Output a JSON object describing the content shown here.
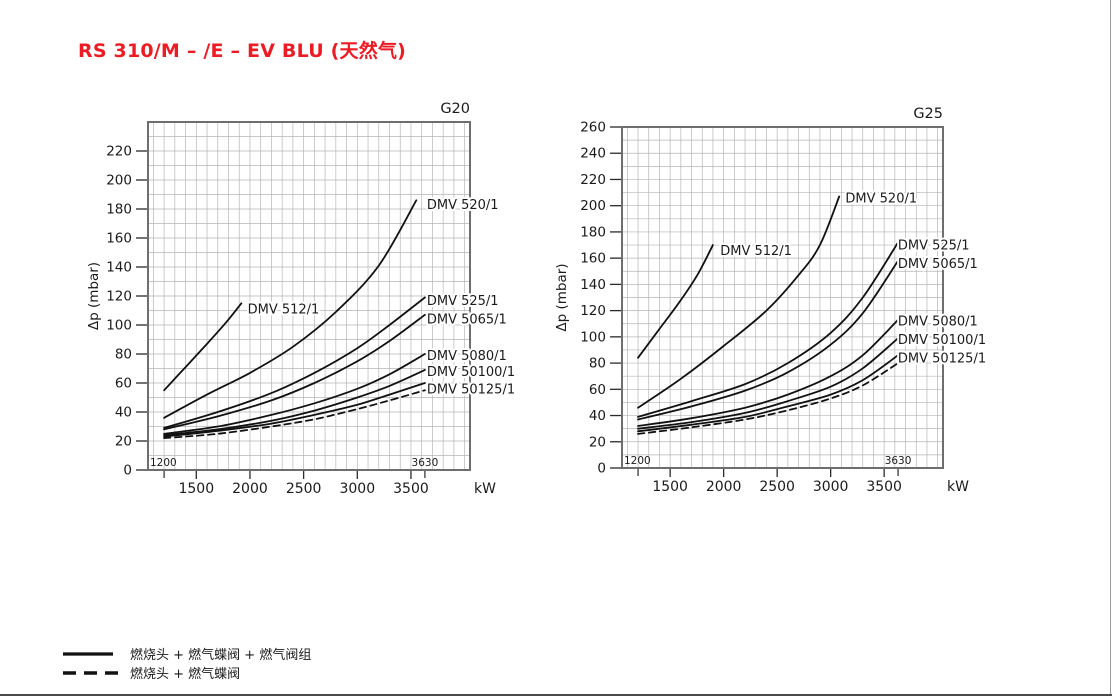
{
  "page": {
    "title": "RS 310/M – /E – EV BLU (天然气)",
    "title_color": "#ed1c24"
  },
  "colors": {
    "curve": "#111111",
    "grid": "#b5b5b5",
    "frame": "#6e6e6e",
    "tick": "#2a2a2a",
    "text": "#1b1b1b"
  },
  "legend": {
    "items": [
      {
        "style": "solid",
        "label": "燃烧头 + 燃气蝶阀 + 燃气阀组"
      },
      {
        "style": "dashed",
        "label": "燃烧头 + 燃气蝶阀"
      }
    ]
  },
  "chart_data": [
    {
      "type": "line",
      "title": "G20",
      "xlabel": "kW",
      "ylabel": "Δp (mbar)",
      "xlim": [
        1050,
        4050
      ],
      "ylim": [
        0,
        240
      ],
      "x_ticks": [
        1500,
        2000,
        2500,
        3000,
        3500
      ],
      "y_ticks": [
        0,
        20,
        40,
        60,
        80,
        100,
        120,
        140,
        160,
        180,
        200,
        220
      ],
      "range_marks": [
        1200,
        3630
      ],
      "grid": {
        "x_step": 100,
        "y_step": 10,
        "on": true
      },
      "series": [
        {
          "name": "DMV 512/1",
          "style": "solid",
          "label_at": [
            1950,
            111
          ],
          "points": [
            [
              1200,
              55
            ],
            [
              1400,
              71
            ],
            [
              1600,
              87
            ],
            [
              1780,
              102
            ],
            [
              1920,
              115
            ]
          ]
        },
        {
          "name": "DMV 520/1",
          "style": "solid",
          "label_at": [
            3620,
            183
          ],
          "points": [
            [
              1200,
              36
            ],
            [
              1600,
              52
            ],
            [
              2000,
              67
            ],
            [
              2400,
              85
            ],
            [
              2800,
              109
            ],
            [
              3200,
              141
            ],
            [
              3550,
              186
            ]
          ]
        },
        {
          "name": "DMV 525/1",
          "style": "solid",
          "label_at": [
            3620,
            117
          ],
          "points": [
            [
              1200,
              29
            ],
            [
              1700,
              40
            ],
            [
              2200,
              53
            ],
            [
              2600,
              67
            ],
            [
              3000,
              84
            ],
            [
              3300,
              100
            ],
            [
              3630,
              119
            ]
          ]
        },
        {
          "name": "DMV 5065/1",
          "style": "solid",
          "label_at": [
            3620,
            104
          ],
          "points": [
            [
              1200,
              28
            ],
            [
              1700,
              37
            ],
            [
              2200,
              48
            ],
            [
              2600,
              60
            ],
            [
              3000,
              75
            ],
            [
              3300,
              89
            ],
            [
              3630,
              107
            ]
          ]
        },
        {
          "name": "DMV 5080/1",
          "style": "solid",
          "label_at": [
            3620,
            79
          ],
          "points": [
            [
              1200,
              25
            ],
            [
              1700,
              30
            ],
            [
              2200,
              38
            ],
            [
              2600,
              46
            ],
            [
              3000,
              56
            ],
            [
              3300,
              66
            ],
            [
              3630,
              80
            ]
          ]
        },
        {
          "name": "DMV 50100/1",
          "style": "solid",
          "label_at": [
            3620,
            68
          ],
          "points": [
            [
              1200,
              24
            ],
            [
              1700,
              28
            ],
            [
              2200,
              34
            ],
            [
              2600,
              41
            ],
            [
              3000,
              50
            ],
            [
              3300,
              58
            ],
            [
              3630,
              69
            ]
          ]
        },
        {
          "name": "DMV 50125/1",
          "style": "solid",
          "label_at": [
            3620,
            56
          ],
          "points": [
            [
              1200,
              23
            ],
            [
              1700,
              27
            ],
            [
              2200,
              32
            ],
            [
              2600,
              38
            ],
            [
              3000,
              45
            ],
            [
              3300,
              52
            ],
            [
              3630,
              60
            ]
          ]
        },
        {
          "name": "",
          "style": "dashed",
          "label_at": null,
          "points": [
            [
              1200,
              22
            ],
            [
              1700,
              25
            ],
            [
              2200,
              30
            ],
            [
              2600,
              35
            ],
            [
              3000,
              42
            ],
            [
              3300,
              48
            ],
            [
              3630,
              55
            ]
          ]
        }
      ]
    },
    {
      "type": "line",
      "title": "G25",
      "xlabel": "kW",
      "ylabel": "Δp (mbar)",
      "xlim": [
        1050,
        4050
      ],
      "ylim": [
        0,
        260
      ],
      "x_ticks": [
        1500,
        2000,
        2500,
        3000,
        3500
      ],
      "y_ticks": [
        0,
        20,
        40,
        60,
        80,
        100,
        120,
        140,
        160,
        180,
        200,
        220,
        240,
        260
      ],
      "range_marks": [
        1200,
        3630
      ],
      "grid": {
        "x_step": 100,
        "y_step": 10,
        "on": true
      },
      "series": [
        {
          "name": "DMV 512/1",
          "style": "solid",
          "label_at": [
            1940,
            166
          ],
          "points": [
            [
              1200,
              84
            ],
            [
              1400,
              106
            ],
            [
              1600,
              128
            ],
            [
              1760,
              148
            ],
            [
              1900,
              170
            ]
          ]
        },
        {
          "name": "DMV 520/1",
          "style": "solid",
          "label_at": [
            3110,
            206
          ],
          "points": [
            [
              1200,
              46
            ],
            [
              1600,
              68
            ],
            [
              2000,
              93
            ],
            [
              2400,
              120
            ],
            [
              2700,
              147
            ],
            [
              2900,
              170
            ],
            [
              3080,
              207
            ]
          ]
        },
        {
          "name": "DMV 525/1",
          "style": "solid",
          "label_at": [
            3600,
            170
          ],
          "points": [
            [
              1200,
              39
            ],
            [
              1700,
              51
            ],
            [
              2200,
              64
            ],
            [
              2600,
              80
            ],
            [
              3000,
              103
            ],
            [
              3300,
              130
            ],
            [
              3630,
              172
            ]
          ]
        },
        {
          "name": "DMV 5065/1",
          "style": "solid",
          "label_at": [
            3600,
            156
          ],
          "points": [
            [
              1200,
              37
            ],
            [
              1700,
              47
            ],
            [
              2200,
              59
            ],
            [
              2600,
              73
            ],
            [
              3000,
              94
            ],
            [
              3300,
              118
            ],
            [
              3630,
              158
            ]
          ]
        },
        {
          "name": "DMV 5080/1",
          "style": "solid",
          "label_at": [
            3600,
            112
          ],
          "points": [
            [
              1200,
              32
            ],
            [
              1700,
              38
            ],
            [
              2200,
              46
            ],
            [
              2600,
              56
            ],
            [
              3000,
              70
            ],
            [
              3300,
              86
            ],
            [
              3630,
              113
            ]
          ]
        },
        {
          "name": "DMV 50100/1",
          "style": "solid",
          "label_at": [
            3600,
            98
          ],
          "points": [
            [
              1200,
              30
            ],
            [
              1700,
              35
            ],
            [
              2200,
              42
            ],
            [
              2600,
              51
            ],
            [
              3000,
              62
            ],
            [
              3300,
              76
            ],
            [
              3630,
              99
            ]
          ]
        },
        {
          "name": "DMV 50125/1",
          "style": "solid",
          "label_at": [
            3600,
            84
          ],
          "points": [
            [
              1200,
              28
            ],
            [
              1700,
              33
            ],
            [
              2200,
              39
            ],
            [
              2600,
              47
            ],
            [
              3000,
              56
            ],
            [
              3300,
              67
            ],
            [
              3630,
              86
            ]
          ]
        },
        {
          "name": "",
          "style": "dashed",
          "label_at": null,
          "points": [
            [
              1200,
              26
            ],
            [
              1700,
              31
            ],
            [
              2200,
              37
            ],
            [
              2600,
              44
            ],
            [
              3000,
              53
            ],
            [
              3300,
              63
            ],
            [
              3630,
              80
            ]
          ]
        }
      ]
    }
  ]
}
